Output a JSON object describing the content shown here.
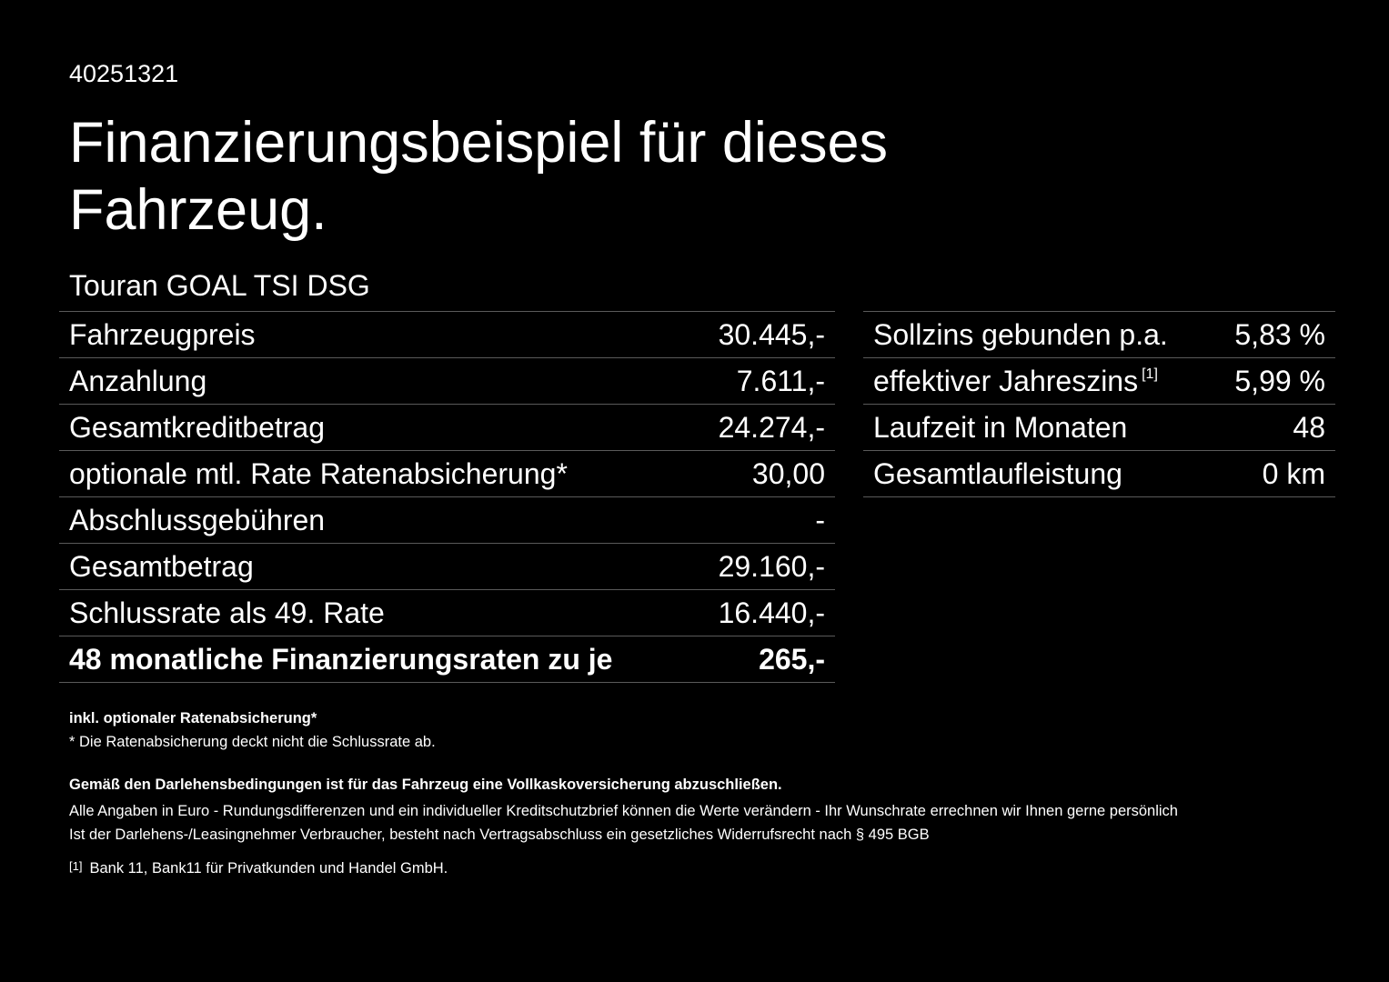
{
  "code": "40251321",
  "title": "Finanzierungsbeispiel für dieses Fahrzeug.",
  "model": "Touran GOAL TSI DSG",
  "left_table": [
    {
      "label": "Fahrzeugpreis",
      "value": "30.445,-"
    },
    {
      "label": "Anzahlung",
      "value": "7.611,-"
    },
    {
      "label": "Gesamtkreditbetrag",
      "value": "24.274,-"
    },
    {
      "label": "optionale mtl. Rate Ratenabsicherung*",
      "value": "30,00"
    },
    {
      "label": "Abschlussgebühren",
      "value": "-"
    },
    {
      "label": "Gesamtbetrag",
      "value": "29.160,-"
    },
    {
      "label": "Schlussrate als 49. Rate",
      "value": "16.440,-"
    },
    {
      "label": "48 monatliche Finanzierungsraten zu je",
      "value": "265,-"
    }
  ],
  "right_table": [
    {
      "label": "Sollzins gebunden p.a.",
      "value": "5,83 %"
    },
    {
      "label": "effektiver Jahreszins",
      "sup": "[1]",
      "value": "5,99 %"
    },
    {
      "label": "Laufzeit in Monaten",
      "value": "48"
    },
    {
      "label": "Gesamtlaufleistung",
      "value": "0 km"
    }
  ],
  "notes": {
    "incl": "inkl. optionaler Ratenabsicherung*",
    "star": "* Die Ratenabsicherung deckt nicht die Schlussrate ab.",
    "insurance": "Gemäß den Darlehensbedingungen ist für das Fahrzeug eine Vollkaskoversicherung abzuschließen.",
    "euro": "Alle Angaben in Euro - Rundungsdifferenzen und ein individueller Kreditschutzbrief können die Werte verändern - Ihr Wunschrate errechnen wir Ihnen gerne persönlich",
    "consumer": "Ist der Darlehens-/Leasingnehmer Verbraucher, besteht nach Vertragsabschluss ein gesetzliches Widerrufsrecht nach § 495 BGB",
    "footnote_mark": "[1]",
    "footnote": "Bank 11, Bank11 für Privatkunden und Handel GmbH."
  }
}
